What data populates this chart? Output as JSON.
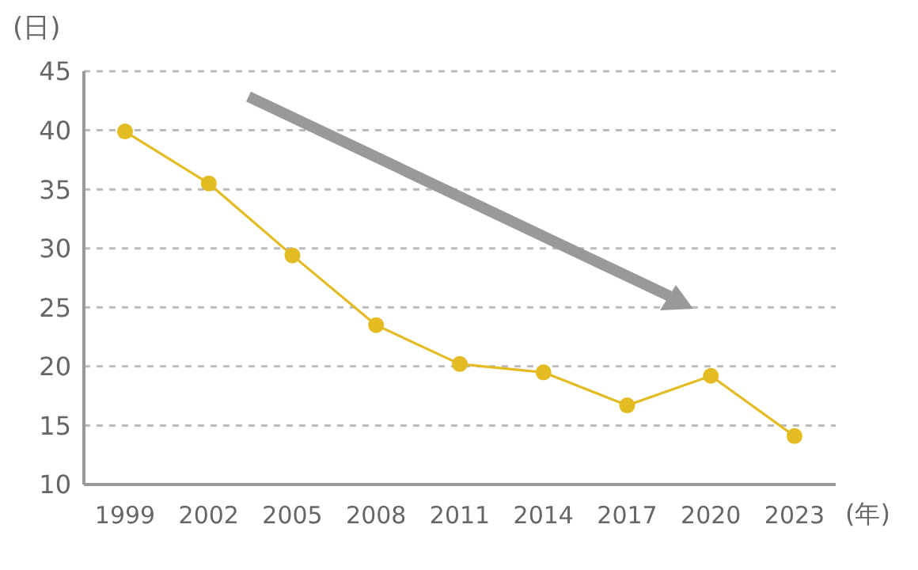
{
  "chart_data": {
    "type": "line",
    "ylabel": "(日)",
    "xlabel": "(年)",
    "categories": [
      "1999",
      "2002",
      "2005",
      "2008",
      "2011",
      "2014",
      "2017",
      "2020",
      "2023"
    ],
    "series": [
      {
        "color": "#e3bb22",
        "values": [
          39.9,
          35.5,
          29.4,
          23.5,
          20.2,
          19.5,
          16.7,
          19.2,
          14.1
        ]
      }
    ],
    "ylim": [
      10,
      45
    ],
    "yticks": [
      10,
      15,
      20,
      25,
      30,
      35,
      40,
      45
    ],
    "grid": "y",
    "marker": "circle"
  }
}
